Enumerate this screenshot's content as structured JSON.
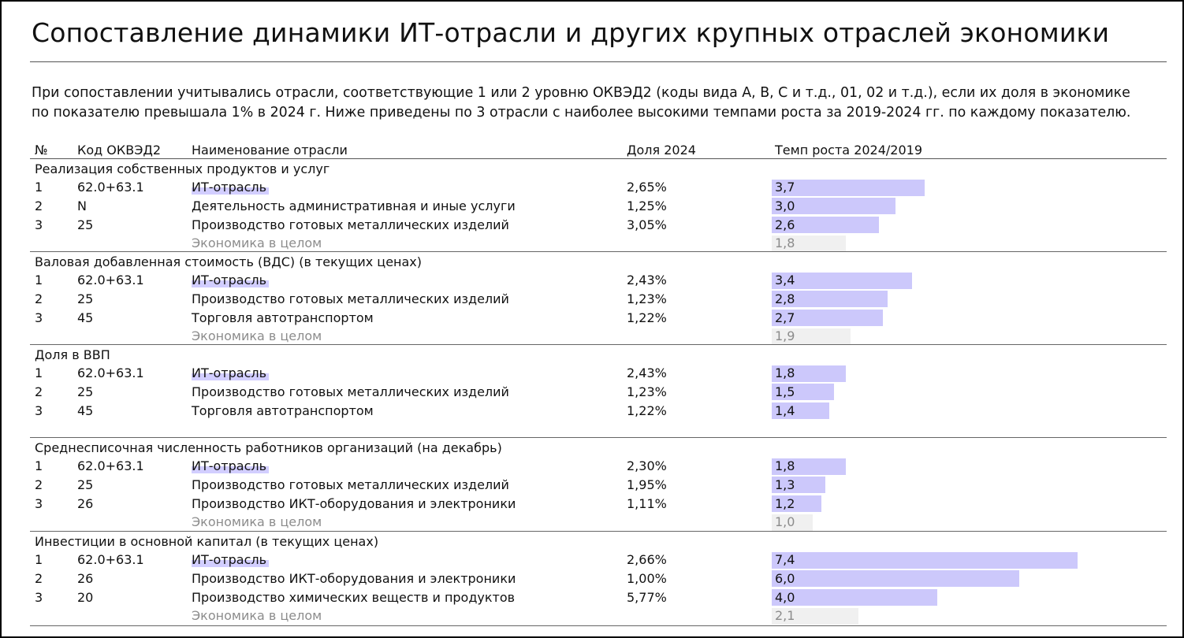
{
  "title": "Сопоставление динамики ИТ-отрасли и других крупных отраслей экономики",
  "description": [
    "При сопоставлении учитывались отрасли, соответствующие 1 или 2 уровню ОКВЭД2 (коды вида A, B, C и т.д., 01, 02 и т.д.), если их доля в экономике",
    "по показателю превышала 1% в 2024 г. Ниже приведены по 3 отрасли с наиболее высокими темпами роста за 2019-2024 гг. по каждому показателю."
  ],
  "headers": {
    "num": "№",
    "code": "Код ОКВЭД2",
    "name": "Наименование отрасли",
    "share": "Доля 2024",
    "growth": "Темп роста 2024/2019"
  },
  "colors": {
    "highlight": "#ccc8fb",
    "economy_bar": "#f0f0f0",
    "muted_text": "#8c8c8c"
  },
  "chart_data": {
    "type": "bar",
    "orientation": "horizontal",
    "value_label": "Темп роста 2024/2019",
    "xlim": [
      0,
      7.4
    ],
    "sections": [
      {
        "title": "Реализация собственных продуктов и услуг",
        "rows": [
          {
            "num": "1",
            "code": "62.0+63.1",
            "name": "ИТ-отрасль",
            "share": "2,65%",
            "growth": 3.7,
            "label": "3,7",
            "it": true
          },
          {
            "num": "2",
            "code": "N",
            "name": "Деятельность административная и иные услуги",
            "share": "1,25%",
            "growth": 3.0,
            "label": "3,0"
          },
          {
            "num": "3",
            "code": "25",
            "name": "Производство готовых металлических изделий",
            "share": "3,05%",
            "growth": 2.6,
            "label": "2,6"
          }
        ],
        "economy": {
          "name": "Экономика в целом",
          "growth": 1.8,
          "label": "1,8"
        }
      },
      {
        "title": "Валовая добавленная стоимость (ВДС) (в текущих ценах)",
        "rows": [
          {
            "num": "1",
            "code": "62.0+63.1",
            "name": "ИТ-отрасль",
            "share": "2,43%",
            "growth": 3.4,
            "label": "3,4",
            "it": true
          },
          {
            "num": "2",
            "code": "25",
            "name": "Производство готовых металлических изделий",
            "share": "1,23%",
            "growth": 2.8,
            "label": "2,8"
          },
          {
            "num": "3",
            "code": "45",
            "name": "Торговля автотранспортом",
            "share": "1,22%",
            "growth": 2.7,
            "label": "2,7"
          }
        ],
        "economy": {
          "name": "Экономика в целом",
          "growth": 1.9,
          "label": "1,9"
        }
      },
      {
        "title": "Доля в ВВП",
        "rows": [
          {
            "num": "1",
            "code": "62.0+63.1",
            "name": "ИТ-отрасль",
            "share": "2,43%",
            "growth": 1.8,
            "label": "1,8",
            "it": true
          },
          {
            "num": "2",
            "code": "25",
            "name": "Производство готовых металлических изделий",
            "share": "1,23%",
            "growth": 1.5,
            "label": "1,5"
          },
          {
            "num": "3",
            "code": "45",
            "name": "Торговля автотранспортом",
            "share": "1,22%",
            "growth": 1.4,
            "label": "1,4"
          }
        ],
        "economy": null
      },
      {
        "title": "Среднесписочная численность работников организаций (на декабрь)",
        "rows": [
          {
            "num": "1",
            "code": "62.0+63.1",
            "name": "ИТ-отрасль",
            "share": "2,30%",
            "growth": 1.8,
            "label": "1,8",
            "it": true
          },
          {
            "num": "2",
            "code": "25",
            "name": "Производство готовых металлических изделий",
            "share": "1,95%",
            "growth": 1.3,
            "label": "1,3"
          },
          {
            "num": "3",
            "code": "26",
            "name": "Производство ИКТ-оборудования и электроники",
            "share": "1,11%",
            "growth": 1.2,
            "label": "1,2"
          }
        ],
        "economy": {
          "name": "Экономика в целом",
          "growth": 1.0,
          "label": "1,0"
        }
      },
      {
        "title": "Инвестиции в основной капитал (в текущих ценах)",
        "rows": [
          {
            "num": "1",
            "code": "62.0+63.1",
            "name": "ИТ-отрасль",
            "share": "2,66%",
            "growth": 7.4,
            "label": "7,4",
            "it": true
          },
          {
            "num": "2",
            "code": "26",
            "name": "Производство ИКТ-оборудования и электроники",
            "share": "1,00%",
            "growth": 6.0,
            "label": "6,0"
          },
          {
            "num": "3",
            "code": "20",
            "name": "Производство химических веществ и продуктов",
            "share": "5,77%",
            "growth": 4.0,
            "label": "4,0"
          }
        ],
        "economy": {
          "name": "Экономика в целом",
          "growth": 2.1,
          "label": "2,1"
        }
      }
    ]
  }
}
